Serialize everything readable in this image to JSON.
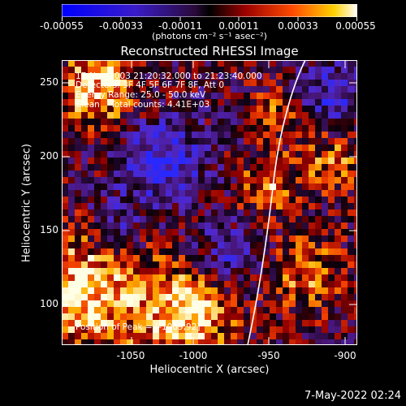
{
  "colorbar": {
    "tick_labels": [
      "-0.00055",
      "-0.00033",
      "-0.00011",
      "0.00011",
      "0.00033",
      "0.00055"
    ],
    "units_label": "(photons cm⁻² s⁻¹ asec⁻²)"
  },
  "plot": {
    "title": "Reconstructed RHESSI Image",
    "xlabel": "Heliocentric X (arcsec)",
    "ylabel": "Heliocentric Y (arcsec)",
    "x_ticks": [
      "-1050",
      "-1000",
      "-950",
      "-900"
    ],
    "y_ticks": [
      "250",
      "200",
      "150",
      "100"
    ],
    "annotations": {
      "time_range": "17-Nov-2003 21:20:32.000 to 21:23:40.000",
      "detectors": "Detectors: 3F 4F 5F 6F 7F 8F, Att 0",
      "energy_range": "Energy Range: 25.0 - 50.0 keV",
      "clean_counts": "Clean    Total counts: 4.41E+03",
      "peak_position": "Position of Peak = [-1009,92]"
    }
  },
  "footer": {
    "timestamp": "7-May-2022 02:24"
  },
  "colors": {
    "background": "#000000",
    "foreground": "#ffffff"
  }
}
